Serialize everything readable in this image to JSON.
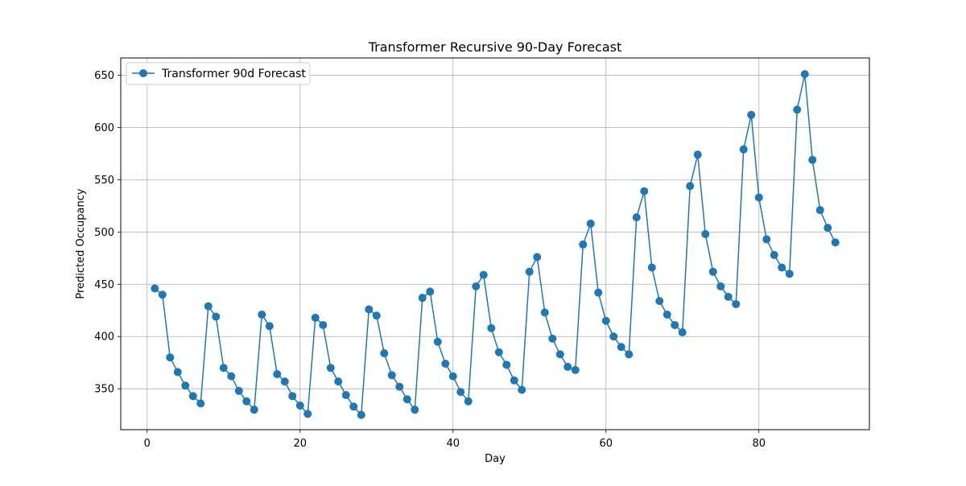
{
  "chart_data": {
    "type": "line",
    "title": "Transformer Recursive 90-Day Forecast",
    "xlabel": "Day",
    "ylabel": "Predicted Occupancy",
    "xlim": [
      -3.45,
      94.45
    ],
    "ylim": [
      310.9,
      666.5
    ],
    "xticks": [
      0,
      20,
      40,
      60,
      80
    ],
    "yticks": [
      350,
      400,
      450,
      500,
      550,
      600,
      650
    ],
    "grid": true,
    "legend_position": "top-left",
    "colors": {
      "series": "#1f77b4",
      "grid": "#b0b0b0",
      "axis": "#000000"
    },
    "series": [
      {
        "name": "Transformer 90d Forecast",
        "marker": "circle",
        "x": [
          1,
          2,
          3,
          4,
          5,
          6,
          7,
          8,
          9,
          10,
          11,
          12,
          13,
          14,
          15,
          16,
          17,
          18,
          19,
          20,
          21,
          22,
          23,
          24,
          25,
          26,
          27,
          28,
          29,
          30,
          31,
          32,
          33,
          34,
          35,
          36,
          37,
          38,
          39,
          40,
          41,
          42,
          43,
          44,
          45,
          46,
          47,
          48,
          49,
          50,
          51,
          52,
          53,
          54,
          55,
          56,
          57,
          58,
          59,
          60,
          61,
          62,
          63,
          64,
          65,
          66,
          67,
          68,
          69,
          70,
          71,
          72,
          73,
          74,
          75,
          76,
          77,
          78,
          79,
          80,
          81,
          82,
          83,
          84,
          85,
          86,
          87,
          88,
          89,
          90
        ],
        "y": [
          446,
          440,
          380,
          366,
          353,
          343,
          336,
          429,
          419,
          370,
          362,
          348,
          338,
          330,
          421,
          410,
          364,
          357,
          343,
          334,
          326,
          418,
          411,
          370,
          357,
          344,
          333,
          325,
          426,
          420,
          384,
          363,
          352,
          340,
          330,
          437,
          443,
          395,
          374,
          362,
          347,
          338,
          448,
          459,
          408,
          385,
          373,
          358,
          349,
          462,
          476,
          423,
          398,
          383,
          371,
          368,
          488,
          508,
          442,
          415,
          400,
          390,
          383,
          514,
          539,
          466,
          434,
          421,
          411,
          404,
          544,
          574,
          498,
          462,
          448,
          438,
          431,
          579,
          612,
          533,
          493,
          478,
          466,
          460,
          617,
          651,
          569,
          521,
          504,
          490
        ]
      }
    ]
  }
}
